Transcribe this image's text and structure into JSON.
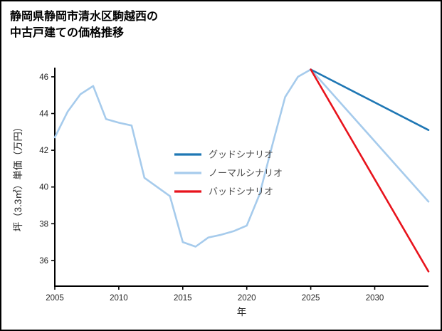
{
  "title": {
    "line1": "静岡県静岡市清水区駒越西の",
    "line2": "中古戸建ての価格推移"
  },
  "chart_data": {
    "type": "line",
    "title": "静岡県静岡市清水区駒越西の中古戸建ての価格推移",
    "xlabel": "年",
    "ylabel": "坪（3.3㎡）単価（万円）",
    "xlim": [
      2005,
      2034.2
    ],
    "ylim": [
      34.6,
      46.5
    ],
    "xticks": [
      2005,
      2010,
      2015,
      2020,
      2025,
      2030
    ],
    "yticks": [
      36,
      38,
      40,
      42,
      44,
      46
    ],
    "grid": false,
    "legend_position": "center-left",
    "legend": [
      {
        "id": "good-scenario",
        "label": "グッドシナリオ",
        "color": "#1f77b4"
      },
      {
        "id": "normal-scenario",
        "label": "ノーマルシナリオ",
        "color": "#a6cbec"
      },
      {
        "id": "bad-scenario",
        "label": "バッドシナリオ",
        "color": "#e8131c"
      }
    ],
    "series": [
      {
        "id": "normal-history",
        "name": "ノーマルシナリオ（実績）",
        "color": "#a6cbec",
        "x": [
          2005,
          2006,
          2007,
          2008,
          2009,
          2010,
          2011,
          2012,
          2013,
          2014,
          2015,
          2016,
          2017,
          2018,
          2019,
          2020,
          2021,
          2022,
          2023,
          2024,
          2025
        ],
        "y": [
          42.7,
          44.1,
          45.05,
          45.5,
          43.7,
          43.5,
          43.35,
          40.5,
          40.0,
          39.5,
          37.0,
          36.75,
          37.25,
          37.4,
          37.6,
          37.9,
          39.6,
          42.3,
          44.9,
          46.0,
          46.4
        ]
      },
      {
        "id": "normal-scenario",
        "name": "ノーマルシナリオ",
        "color": "#a6cbec",
        "x": [
          2025,
          2034.2
        ],
        "y": [
          46.4,
          39.2
        ]
      },
      {
        "id": "good-scenario",
        "name": "グッドシナリオ",
        "color": "#1f77b4",
        "x": [
          2025,
          2034.2
        ],
        "y": [
          46.4,
          43.1
        ]
      },
      {
        "id": "bad-scenario",
        "name": "バッドシナリオ",
        "color": "#e8131c",
        "x": [
          2025,
          2034.2
        ],
        "y": [
          46.4,
          35.4
        ]
      }
    ]
  }
}
